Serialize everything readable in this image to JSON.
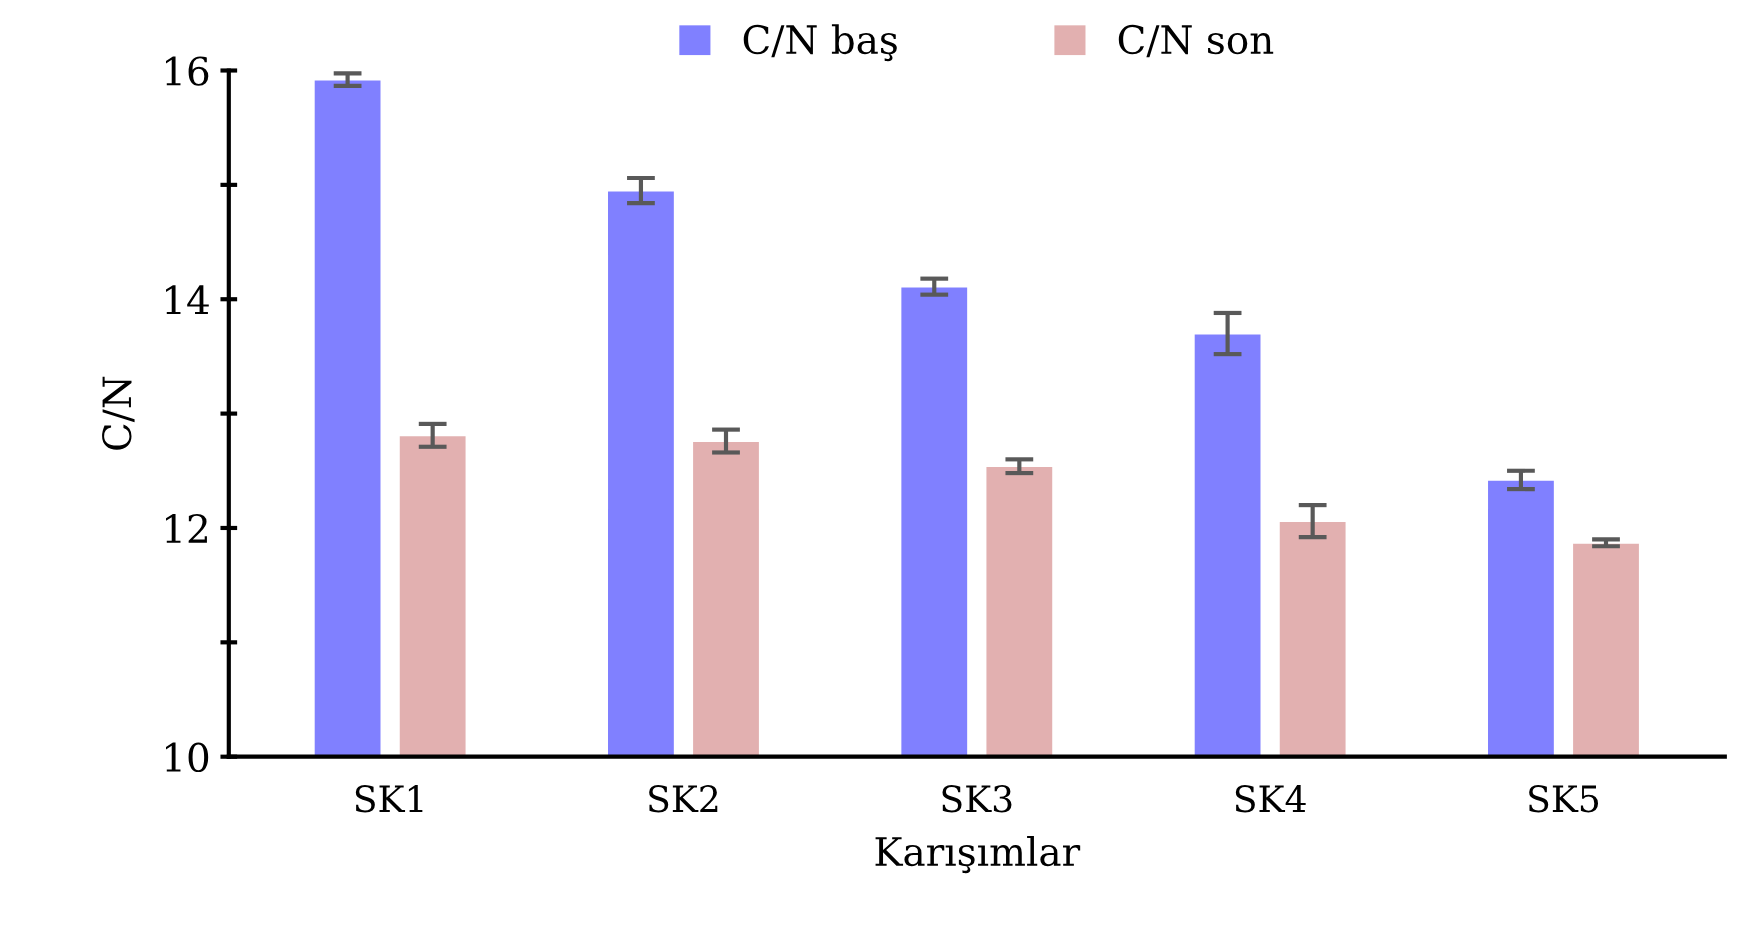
{
  "chart_data": {
    "type": "bar",
    "xlabel": "Karışımlar",
    "ylabel": "C/N",
    "categories": [
      "SK1",
      "SK2",
      "SK3",
      "SK4",
      "SK5"
    ],
    "series": [
      {
        "name": "C/N baş",
        "color": "#8080ff",
        "values": [
          15.92,
          14.95,
          14.11,
          13.7,
          12.42
        ],
        "errors": [
          0.055,
          0.11,
          0.07,
          0.18,
          0.08
        ]
      },
      {
        "name": "C/N son",
        "color": "#e2b0b0",
        "values": [
          12.81,
          12.76,
          12.54,
          12.06,
          11.87
        ],
        "errors": [
          0.1,
          0.1,
          0.06,
          0.14,
          0.03
        ]
      }
    ],
    "ylim": [
      10,
      16
    ],
    "yticks": [
      10,
      {
        "value": 11,
        "label": null
      },
      12,
      {
        "value": 13,
        "label": null
      },
      14,
      {
        "value": 15,
        "label": null
      },
      16
    ],
    "grid": false,
    "legend": "top"
  }
}
